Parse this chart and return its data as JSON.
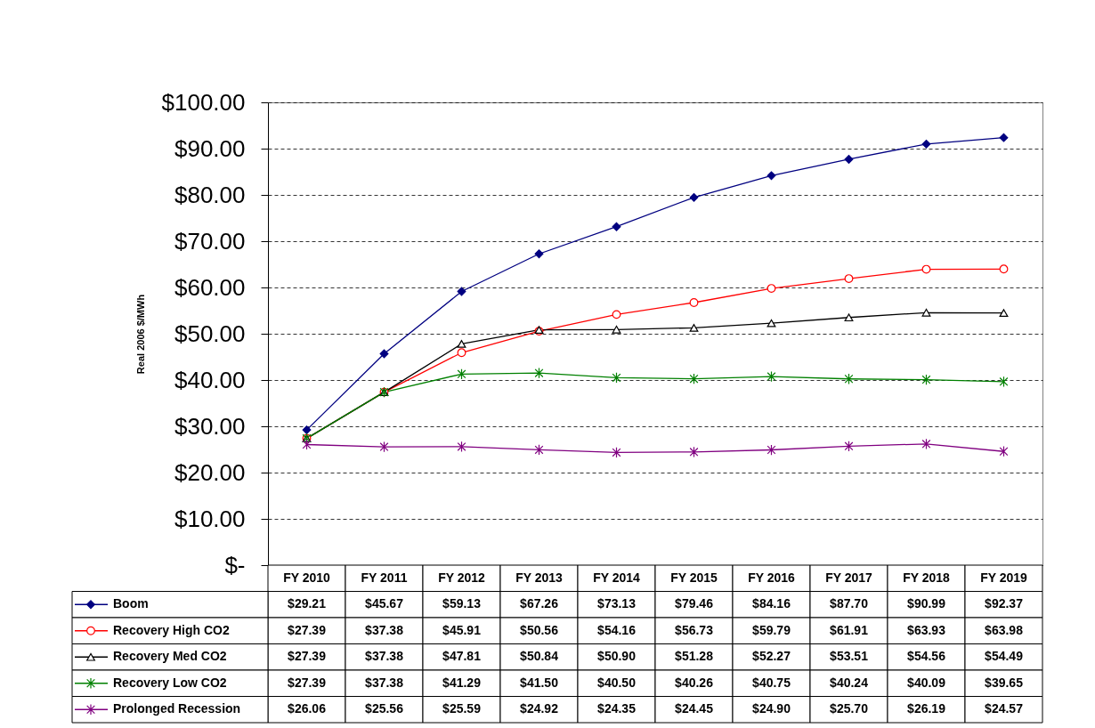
{
  "chart_data": {
    "type": "line",
    "ylabel": "Real 2006 $/MWh",
    "categories": [
      "FY 2010",
      "FY 2011",
      "FY 2012",
      "FY 2013",
      "FY 2014",
      "FY 2015",
      "FY 2016",
      "FY 2017",
      "FY 2018",
      "FY 2019"
    ],
    "ylim": [
      0,
      100
    ],
    "yticks": [
      {
        "value": 0,
        "label": "$-"
      },
      {
        "value": 10,
        "label": "$10.00"
      },
      {
        "value": 20,
        "label": "$20.00"
      },
      {
        "value": 30,
        "label": "$30.00"
      },
      {
        "value": 40,
        "label": "$40.00"
      },
      {
        "value": 50,
        "label": "$50.00"
      },
      {
        "value": 60,
        "label": "$60.00"
      },
      {
        "value": 70,
        "label": "$70.00"
      },
      {
        "value": 80,
        "label": "$80.00"
      },
      {
        "value": 90,
        "label": "$90.00"
      },
      {
        "value": 100,
        "label": "$100.00"
      }
    ],
    "grid": "y",
    "legend": "bottom",
    "series": [
      {
        "name": "Boom",
        "color": "#000080",
        "marker": "diamond",
        "values": [
          29.21,
          45.67,
          59.13,
          67.26,
          73.13,
          79.46,
          84.16,
          87.7,
          90.99,
          92.37
        ],
        "value_labels": [
          "$29.21",
          "$45.67",
          "$59.13",
          "$67.26",
          "$73.13",
          "$79.46",
          "$84.16",
          "$87.70",
          "$90.99",
          "$92.37"
        ]
      },
      {
        "name": "Recovery High CO2",
        "color": "#ff0000",
        "marker": "circle",
        "values": [
          27.39,
          37.38,
          45.91,
          50.56,
          54.16,
          56.73,
          59.79,
          61.91,
          63.93,
          63.98
        ],
        "value_labels": [
          "$27.39",
          "$37.38",
          "$45.91",
          "$50.56",
          "$54.16",
          "$56.73",
          "$59.79",
          "$61.91",
          "$63.93",
          "$63.98"
        ]
      },
      {
        "name": "Recovery Med CO2",
        "color": "#000000",
        "marker": "triangle",
        "values": [
          27.39,
          37.38,
          47.81,
          50.84,
          50.9,
          51.28,
          52.27,
          53.51,
          54.56,
          54.49
        ],
        "value_labels": [
          "$27.39",
          "$37.38",
          "$47.81",
          "$50.84",
          "$50.90",
          "$51.28",
          "$52.27",
          "$53.51",
          "$54.56",
          "$54.49"
        ]
      },
      {
        "name": "Recovery Low CO2",
        "color": "#008000",
        "marker": "cross",
        "values": [
          27.39,
          37.38,
          41.29,
          41.5,
          40.5,
          40.26,
          40.75,
          40.24,
          40.09,
          39.65
        ],
        "value_labels": [
          "$27.39",
          "$37.38",
          "$41.29",
          "$41.50",
          "$40.50",
          "$40.26",
          "$40.75",
          "$40.24",
          "$40.09",
          "$39.65"
        ]
      },
      {
        "name": "Prolonged Recession",
        "color": "#800080",
        "marker": "cross",
        "values": [
          26.06,
          25.56,
          25.59,
          24.92,
          24.35,
          24.45,
          24.9,
          25.7,
          26.19,
          24.57
        ],
        "value_labels": [
          "$26.06",
          "$25.56",
          "$25.59",
          "$24.92",
          "$24.35",
          "$24.45",
          "$24.90",
          "$25.70",
          "$26.19",
          "$24.57"
        ]
      }
    ]
  }
}
